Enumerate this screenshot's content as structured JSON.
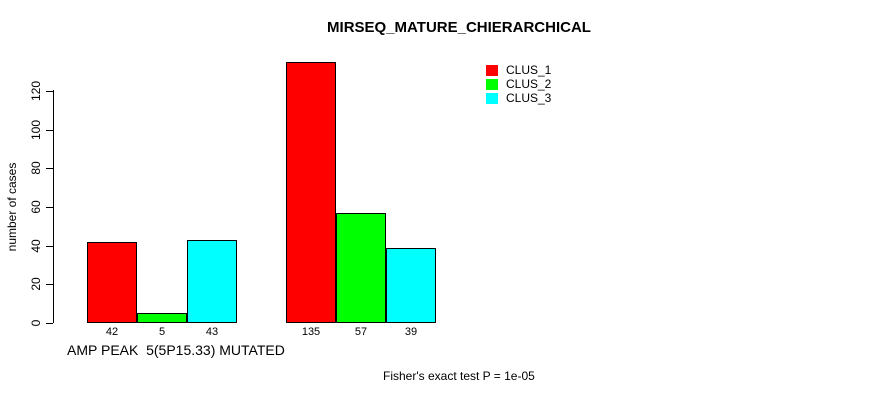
{
  "title": "MIRSEQ_MATURE_CHIERARCHICAL",
  "chart_data": {
    "type": "bar",
    "title": "MIRSEQ_MATURE_CHIERARCHICAL",
    "categories": [
      "AMP PEAK  5(5P15.33) MUTATED",
      ""
    ],
    "series": [
      {
        "name": "CLUS_1",
        "color": "#ff0000",
        "values": [
          42,
          135
        ]
      },
      {
        "name": "CLUS_2",
        "color": "#00ff00",
        "values": [
          5,
          57
        ]
      },
      {
        "name": "CLUS_3",
        "color": "#00ffff",
        "values": [
          43,
          39
        ]
      }
    ],
    "ylabel": "number of cases",
    "xlabel": "",
    "yticks": [
      0,
      20,
      40,
      60,
      80,
      100,
      120
    ],
    "ylim": [
      0,
      120
    ],
    "bar_value_labels_shown": true,
    "legend_position": "top-right",
    "grid": false,
    "bar_border_color": "#000000",
    "background_color": "#ffffff"
  },
  "footer": {
    "note": "Fisher's exact test P = 1e-05"
  }
}
